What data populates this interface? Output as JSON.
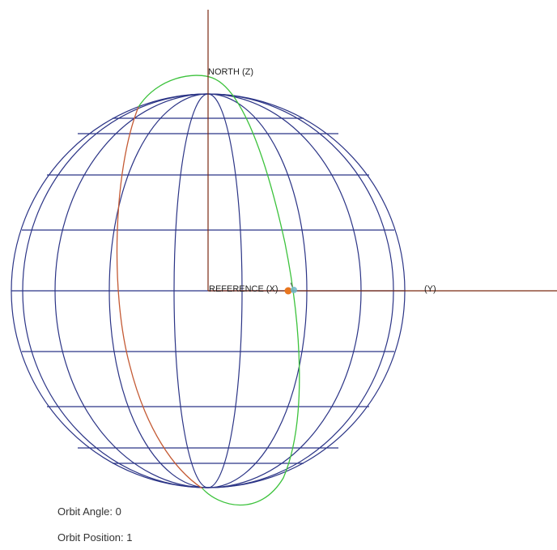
{
  "labels": {
    "north": "NORTH (Z)",
    "reference": "REFERENCE (X)",
    "y_axis": "(Y)"
  },
  "readouts": {
    "orbit_angle_label": "Orbit Angle:",
    "orbit_angle_value": "0",
    "orbit_position_label": "Orbit Position:",
    "orbit_position_value": "1"
  },
  "colors": {
    "axis": "#7a2a12",
    "globe_grid": "#2b3486",
    "orbit_front": "#3cc23c",
    "orbit_back": "#c45a34",
    "satellite": "#e8761f",
    "satellite_marker": "#6fb6c8"
  },
  "icons": {
    "satellite": "satellite-icon"
  }
}
